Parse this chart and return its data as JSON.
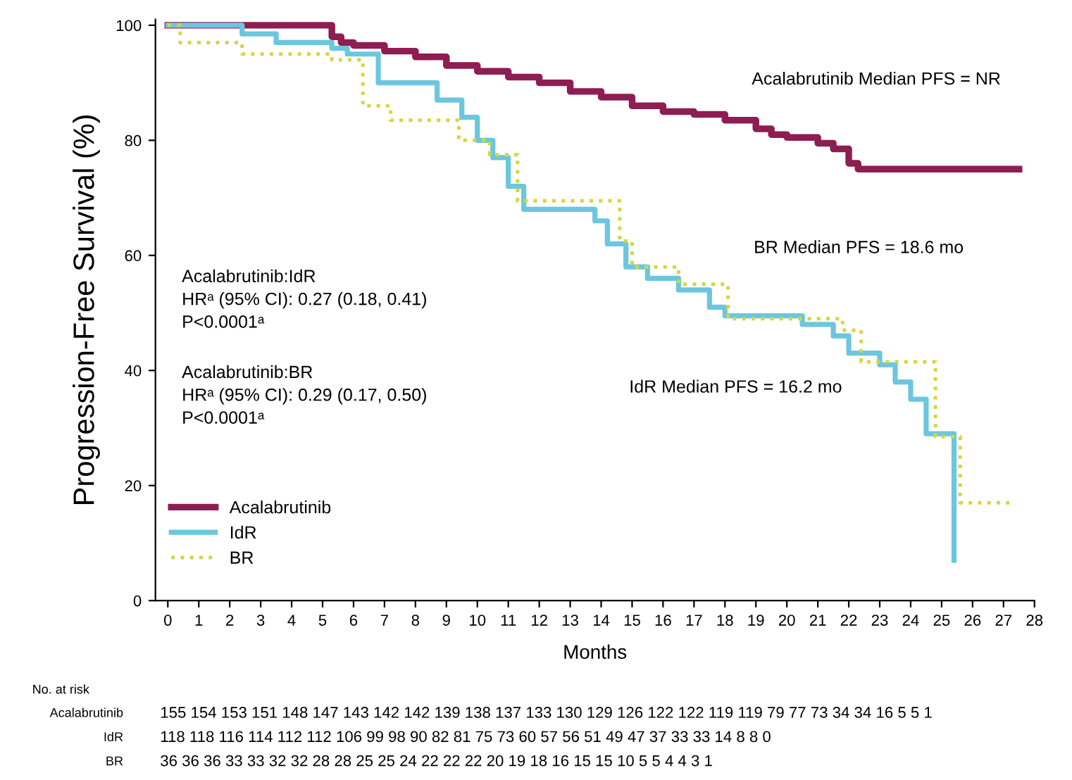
{
  "chart_data": {
    "type": "step",
    "ylabel": "Progression-Free Survival (%)",
    "xlabel": "Months",
    "xlim": [
      -0.4,
      28
    ],
    "xticks": [
      0,
      1,
      2,
      3,
      4,
      5,
      6,
      7,
      8,
      9,
      10,
      11,
      12,
      13,
      14,
      15,
      16,
      17,
      18,
      19,
      20,
      21,
      22,
      23,
      24,
      25,
      26,
      27,
      28
    ],
    "ylim": [
      0,
      101
    ],
    "yticks": [
      0,
      20,
      40,
      60,
      80,
      100
    ],
    "grid": false,
    "legend": "bottom left",
    "marker": "none",
    "series": [
      {
        "name": "Acalabrutinib",
        "color": "#8e1d52",
        "line_style": "solid",
        "x": [
          0,
          5.3,
          5.6,
          6,
          7,
          8,
          9,
          10,
          11,
          12,
          13,
          14,
          15,
          16,
          17,
          18,
          19,
          19.5,
          20,
          21,
          21.5,
          22,
          22.3,
          27.5
        ],
        "values": [
          100,
          98,
          97,
          96.5,
          95.5,
          94.5,
          93,
          92,
          91,
          90,
          88.5,
          87.5,
          86,
          85,
          84.5,
          83.5,
          82,
          81,
          80.5,
          79.5,
          78.5,
          76,
          75,
          75
        ]
      },
      {
        "name": "IdR",
        "color": "#6cc6de",
        "line_style": "solid",
        "x": [
          0,
          2.4,
          3.5,
          5.3,
          5.8,
          6.8,
          8.7,
          9.5,
          10,
          10.5,
          11,
          11.5,
          13.8,
          14.2,
          14.8,
          15.5,
          16.5,
          17.5,
          18,
          20.5,
          21.5,
          22,
          23,
          23.5,
          24,
          24.5,
          25.4
        ],
        "values": [
          100,
          98.5,
          97,
          96,
          95,
          90,
          87,
          84,
          80,
          77,
          72,
          68,
          66,
          62,
          58,
          56,
          54,
          51,
          49.5,
          48,
          46,
          43,
          41,
          38,
          35,
          29,
          7
        ]
      },
      {
        "name": "BR",
        "color": "#d6d63e",
        "line_style": "dotted",
        "x": [
          0,
          0.4,
          2.4,
          5.3,
          6.3,
          7.2,
          9.4,
          10.4,
          11.3,
          14.6,
          15,
          16.5,
          18.1,
          21.8,
          22.4,
          24.8,
          25.6,
          27.2
        ],
        "values": [
          100,
          97,
          95,
          94,
          86,
          83.5,
          80,
          77.5,
          69.5,
          62.5,
          58,
          55,
          49,
          47,
          41.5,
          28.5,
          17,
          17
        ]
      }
    ],
    "annotations": [
      "Acalabrutinib Median PFS = NR",
      "BR Median PFS = 18.6 mo",
      "IdR Median PFS = 16.2 mo",
      "Acalabrutinib:IdR\nHRᵃ (95% CI): 0.27 (0.18, 0.41)\nP<0.0001ᵃ",
      "Acalabrutinib:BR\nHRᵃ (95% CI): 0.29 (0.17, 0.50)\nP<0.0001ᵃ",
      "No. at risk",
      "Acalabrutinib",
      "155 154 153 151 148 147 143 142 142 139 138 137 133 130 129 126 122 122 119 119 79 77 73 34 34 16 5 5 1",
      "IdR",
      "118 118 116 114 112 112 106 99 98 90 82 81 75 73 60 57 56 51 49 47 37 33 33 14 8 8 0",
      "BR",
      "36 36 36 33 33 32 32 28 28 25 25 24 22 22 22 20 19 18 16 15 15 10 5 5 4 4 3 1"
    ]
  }
}
